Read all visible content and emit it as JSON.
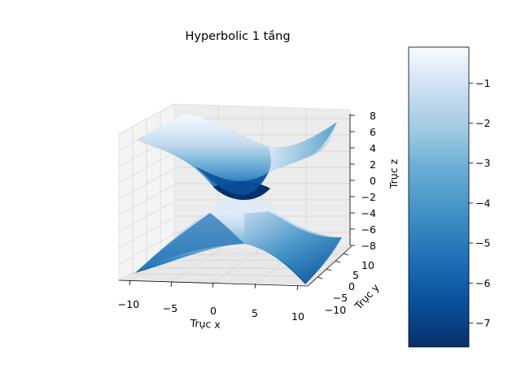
{
  "chart_data": {
    "type": "surface3d",
    "title": "Hyperbolic 1 tầng",
    "surface": "hyperboloid of one sheet, upper and lower halves (z = ±sqrt(x²/25 − y²/9 + 1)·4-ish saddle shape)",
    "colormap": "Blues_r",
    "axes": {
      "x": {
        "label": "Trục x",
        "ticks": [
          "−10",
          "−5",
          "0",
          "5",
          "10"
        ],
        "range": [
          -11,
          11
        ]
      },
      "y": {
        "label": "Trục y",
        "ticks": [
          "−10",
          "−5",
          "0",
          "5",
          "10"
        ],
        "range": [
          -11,
          11
        ]
      },
      "z": {
        "label": "Trục z",
        "ticks": [
          "−8",
          "−6",
          "−4",
          "−2",
          "0",
          "2",
          "4",
          "6",
          "8"
        ],
        "range": [
          -8,
          8
        ]
      }
    },
    "colorbar": {
      "ticks": [
        "−1",
        "−2",
        "−3",
        "−4",
        "−5",
        "−6",
        "−7"
      ],
      "values": [
        -1,
        -2,
        -3,
        -4,
        -5,
        -6,
        -7
      ],
      "range": [
        -7.6,
        -0.1
      ]
    },
    "grid": true,
    "colors": {
      "light": "#f7fbff",
      "mid": "#6baed6",
      "dark": "#08306b",
      "pane": "#f2f2f2",
      "grid": "#d0d0d0"
    }
  }
}
